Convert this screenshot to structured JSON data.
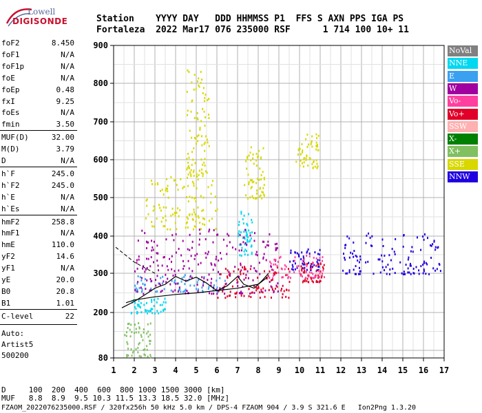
{
  "logo": {
    "line1": "Lowell",
    "line2": "DIGISONDE"
  },
  "header": {
    "row1": "Station    YYYY DAY   DDD HHMMSS P1  FFS S AXN PPS IGA PS",
    "row2": "Fortaleza  2022 Mar17 076 235000 RSF      1 714 100 10+ 11"
  },
  "params": [
    {
      "k": "foF2",
      "v": "8.450"
    },
    {
      "k": "foF1",
      "v": "N/A"
    },
    {
      "k": "foF1p",
      "v": "N/A"
    },
    {
      "k": "foE",
      "v": "N/A"
    },
    {
      "k": "foEp",
      "v": "0.48"
    },
    {
      "k": "fxI",
      "v": "9.25"
    },
    {
      "k": "foEs",
      "v": "N/A"
    },
    {
      "k": "fmin",
      "v": "3.50"
    },
    {
      "k": "MUF(D)",
      "v": "32.00"
    },
    {
      "k": "M(D)",
      "v": "3.79"
    },
    {
      "k": "D",
      "v": "N/A"
    },
    {
      "k": "h`F",
      "v": "245.0"
    },
    {
      "k": "h`F2",
      "v": "245.0"
    },
    {
      "k": "h`E",
      "v": "N/A"
    },
    {
      "k": "h`Es",
      "v": "N/A"
    },
    {
      "k": "hmF2",
      "v": "258.8"
    },
    {
      "k": "hmF1",
      "v": "N/A"
    },
    {
      "k": "hmE",
      "v": "110.0"
    },
    {
      "k": "yF2",
      "v": "14.6"
    },
    {
      "k": "yF1",
      "v": "N/A"
    },
    {
      "k": "yE",
      "v": "20.0"
    },
    {
      "k": "B0",
      "v": "20.8"
    },
    {
      "k": "B1",
      "v": "1.01"
    },
    {
      "k": "C-level",
      "v": "22"
    }
  ],
  "auto": [
    "Auto:",
    "Artist5",
    "500200"
  ],
  "legend": [
    {
      "label": "NoVal",
      "color": "#808080"
    },
    {
      "label": "NNE",
      "color": "#00d8f0"
    },
    {
      "label": "E",
      "color": "#3aa0f0"
    },
    {
      "label": "W",
      "color": "#a000a0"
    },
    {
      "label": "Vo-",
      "color": "#ff40a0"
    },
    {
      "label": "Vo+",
      "color": "#e00028"
    },
    {
      "label": "SSW",
      "color": "#ffb0b0"
    },
    {
      "label": "X-",
      "color": "#008000"
    },
    {
      "label": "X+",
      "color": "#80c060"
    },
    {
      "label": "SSE",
      "color": "#d8d800"
    },
    {
      "label": "NNW",
      "color": "#2000e0"
    }
  ],
  "footer": {
    "line1": "D     100  200  400  600  800 1000 1500 3000 [km]",
    "line2": "MUF   8.8  8.9  9.5 10.3 11.5 13.3 18.5 32.0 [MHz]",
    "file": "FZAOM_2022076235000.RSF / 320fx256h 50 kHz 5.0 km / DPS-4 FZAOM 904 / 3.9 S 321.6 E   Ion2Png 1.3.20"
  },
  "chart_data": {
    "type": "scatter",
    "x_ticks": [
      1,
      2,
      3,
      4,
      5,
      6,
      7,
      8,
      9,
      10,
      11,
      12,
      13,
      14,
      15,
      16,
      17
    ],
    "y_ticks": [
      80,
      200,
      300,
      400,
      500,
      600,
      700,
      800,
      900
    ],
    "xlim": [
      1,
      17
    ],
    "y_scale": "ionogram-virtual-height",
    "grid": true,
    "legend_position": "right",
    "traces": {
      "o_trace_trend": [
        [
          1.6,
          225
        ],
        [
          2,
          232
        ],
        [
          3,
          240
        ],
        [
          4,
          246
        ],
        [
          5,
          250
        ],
        [
          6,
          256
        ],
        [
          7,
          262
        ],
        [
          8,
          272
        ],
        [
          8.45,
          290
        ]
      ],
      "profile_curve": [
        [
          1.4,
          212
        ],
        [
          2,
          228
        ],
        [
          2.6,
          248
        ],
        [
          3,
          262
        ],
        [
          3.5,
          272
        ],
        [
          4,
          292
        ],
        [
          4.5,
          280
        ],
        [
          5,
          290
        ],
        [
          5.5,
          275
        ],
        [
          6,
          255
        ],
        [
          6.5,
          268
        ],
        [
          7,
          292
        ],
        [
          7.3,
          272
        ],
        [
          7.8,
          262
        ],
        [
          8.2,
          282
        ],
        [
          8.5,
          300
        ]
      ],
      "dashed_extrapolation": [
        [
          1.1,
          370
        ],
        [
          2,
          330
        ],
        [
          3,
          300
        ]
      ]
    },
    "clusters": [
      {
        "legend": "SSE",
        "x": [
          2.5,
          6.0
        ],
        "y": [
          420,
          560
        ]
      },
      {
        "legend": "SSE",
        "x": [
          4.5,
          5.6
        ],
        "y": [
          560,
          840
        ]
      },
      {
        "legend": "SSE",
        "x": [
          7.3,
          8.3
        ],
        "y": [
          500,
          640
        ]
      },
      {
        "legend": "SSE",
        "x": [
          9.8,
          10.9
        ],
        "y": [
          580,
          670
        ]
      },
      {
        "legend": "E",
        "x": [
          2.0,
          6.5
        ],
        "y": [
          255,
          300
        ]
      },
      {
        "legend": "NNE",
        "x": [
          1.8,
          3.5
        ],
        "y": [
          200,
          240
        ]
      },
      {
        "legend": "NNE",
        "x": [
          7.0,
          7.7
        ],
        "y": [
          350,
          470
        ]
      },
      {
        "legend": "NNW",
        "x": [
          9.5,
          11.0
        ],
        "y": [
          310,
          370
        ]
      },
      {
        "legend": "NNW",
        "x": [
          12.0,
          16.8
        ],
        "y": [
          300,
          410
        ]
      },
      {
        "legend": "Vo+",
        "x": [
          6.0,
          9.5
        ],
        "y": [
          240,
          330
        ]
      },
      {
        "legend": "Vo+",
        "x": [
          10.0,
          11.2
        ],
        "y": [
          280,
          330
        ]
      },
      {
        "legend": "W",
        "x": [
          2.0,
          9.0
        ],
        "y": [
          250,
          420
        ]
      },
      {
        "legend": "Vo-",
        "x": [
          8.5,
          11.2
        ],
        "y": [
          290,
          350
        ]
      },
      {
        "legend": "X+",
        "x": [
          1.5,
          2.8
        ],
        "y": [
          85,
          175
        ]
      }
    ]
  }
}
